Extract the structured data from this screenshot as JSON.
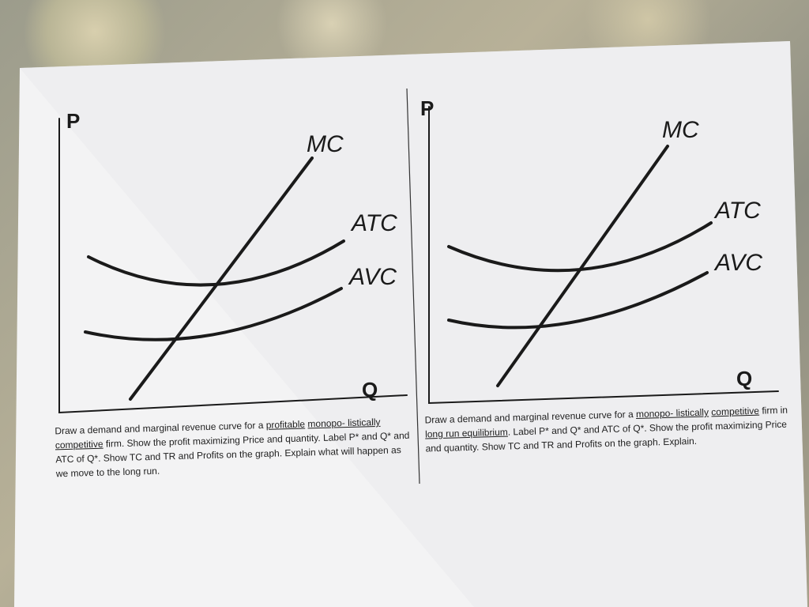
{
  "panels": [
    {
      "axis_y": "P",
      "axis_x": "Q",
      "mc": "MC",
      "atc": "ATC",
      "avc": "AVC",
      "instruction": [
        {
          "text": "Draw a demand and marginal revenue curve for a "
        },
        {
          "text": "profitable",
          "underline": true
        },
        {
          "text": " "
        },
        {
          "text": "monopo- listically",
          "underline": true
        },
        {
          "text": " "
        },
        {
          "text": "competitive",
          "underline": true
        },
        {
          "text": " firm. Show the profit maximizing Price and quantity. Label P* and Q* and ATC of Q*. Show TC and TR and Profits on the graph. Explain what will happen as we move to the long run."
        }
      ]
    },
    {
      "axis_y": "P",
      "axis_x": "Q",
      "mc": "MC",
      "atc": "ATC",
      "avc": "AVC",
      "instruction": [
        {
          "text": "Draw a demand and marginal revenue curve for a "
        },
        {
          "text": "monopo- listically",
          "underline": true
        },
        {
          "text": " "
        },
        {
          "text": "competitive",
          "underline": true
        },
        {
          "text": " firm in "
        },
        {
          "text": "long run equilibrium",
          "underline": true
        },
        {
          "text": ". Label P* and Q* and ATC of Q*. Show the profit maximizing Price and quantity. Show TC and TR and Profits on the graph. Explain."
        }
      ]
    }
  ]
}
